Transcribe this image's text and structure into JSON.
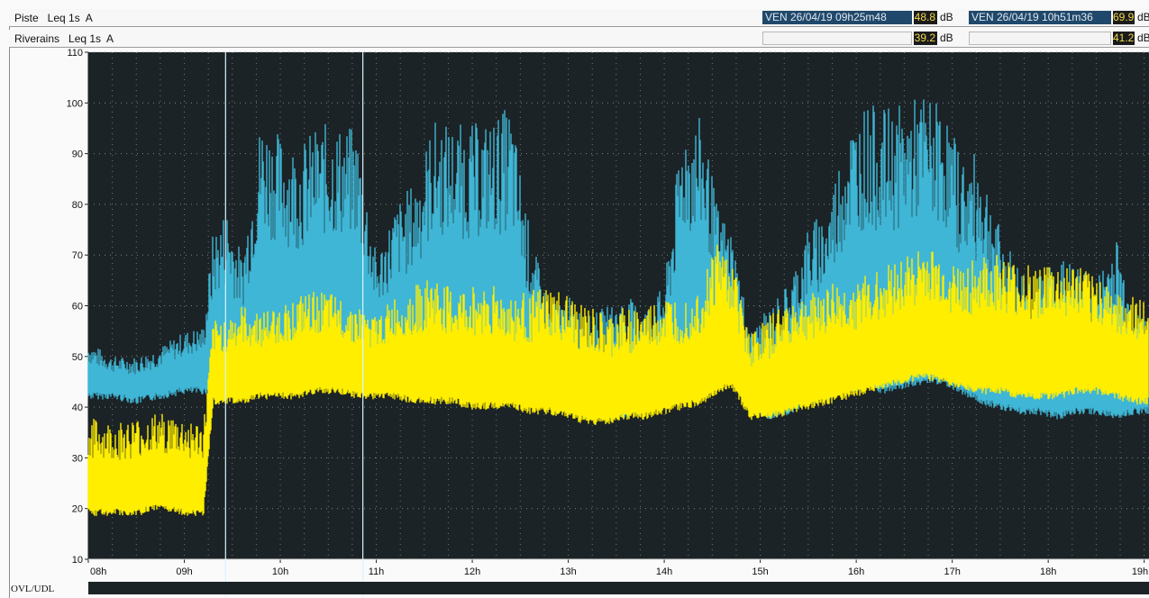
{
  "header": {
    "row1": {
      "label": "Piste   Leq 1s  A",
      "cursor1_datetime": "VEN 26/04/19 09h25m48",
      "cursor1_value": "48.8",
      "cursor1_unit": "dB",
      "cursor2_datetime": "VEN 26/04/19 10h51m36",
      "cursor2_value": "69.9",
      "cursor2_unit": "dB"
    },
    "row2": {
      "label": "Riverains   Leq 1s  A",
      "cursor1_value": "39.2",
      "cursor1_unit": "dB",
      "cursor2_value": "41.2",
      "cursor2_unit": "dB"
    }
  },
  "footer": {
    "ovl_label": "OVL/UDL"
  },
  "colors": {
    "piste": "#3fb6d6",
    "riverains": "#ffee00",
    "background": "#1c2326",
    "cursor": "#d8f4ff"
  },
  "chart_data": {
    "type": "line",
    "title": "",
    "xlabel": "",
    "ylabel": "",
    "x_ticks": [
      "08h",
      "09h",
      "10h",
      "11h",
      "12h",
      "13h",
      "14h",
      "15h",
      "16h",
      "17h",
      "18h",
      "19h"
    ],
    "y_ticks": [
      10,
      20,
      30,
      40,
      50,
      60,
      70,
      80,
      90,
      100,
      110
    ],
    "xlim_hours": [
      8,
      19.05
    ],
    "ylim": [
      10,
      110
    ],
    "grid": true,
    "cursors_hours": [
      9.43,
      10.86
    ],
    "series": [
      {
        "name": "Piste",
        "color": "#3fb6d6",
        "points": [
          [
            8.0,
            43,
            53
          ],
          [
            8.25,
            43,
            50
          ],
          [
            8.5,
            42,
            50
          ],
          [
            8.75,
            43,
            52
          ],
          [
            9.0,
            44,
            55
          ],
          [
            9.2,
            44,
            56
          ],
          [
            9.3,
            44,
            75
          ],
          [
            9.45,
            44,
            80
          ],
          [
            9.6,
            45,
            70
          ],
          [
            9.8,
            45,
            98
          ],
          [
            10.0,
            45,
            94
          ],
          [
            10.2,
            45,
            92
          ],
          [
            10.4,
            46,
            96
          ],
          [
            10.6,
            45,
            96
          ],
          [
            10.8,
            46,
            95
          ],
          [
            11.0,
            45,
            70
          ],
          [
            11.2,
            46,
            80
          ],
          [
            11.4,
            44,
            85
          ],
          [
            11.6,
            45,
            97
          ],
          [
            11.8,
            45,
            96
          ],
          [
            12.0,
            45,
            96
          ],
          [
            12.2,
            44,
            97
          ],
          [
            12.4,
            44,
            100
          ],
          [
            12.6,
            43,
            75
          ],
          [
            12.8,
            42,
            60
          ],
          [
            13.0,
            40,
            62
          ],
          [
            13.2,
            39,
            58
          ],
          [
            13.4,
            39,
            60
          ],
          [
            13.6,
            39,
            62
          ],
          [
            13.8,
            40,
            60
          ],
          [
            14.0,
            42,
            64
          ],
          [
            14.2,
            43,
            98
          ],
          [
            14.4,
            45,
            97
          ],
          [
            14.55,
            48,
            80
          ],
          [
            14.7,
            47,
            75
          ],
          [
            14.9,
            40,
            55
          ],
          [
            15.1,
            39,
            60
          ],
          [
            15.3,
            40,
            65
          ],
          [
            15.5,
            42,
            76
          ],
          [
            15.7,
            43,
            80
          ],
          [
            15.9,
            44,
            96
          ],
          [
            16.1,
            45,
            100
          ],
          [
            16.3,
            44,
            99
          ],
          [
            16.5,
            45,
            100
          ],
          [
            16.7,
            46,
            102
          ],
          [
            16.9,
            46,
            100
          ],
          [
            17.1,
            44,
            90
          ],
          [
            17.3,
            42,
            90
          ],
          [
            17.5,
            41,
            75
          ],
          [
            17.7,
            40,
            68
          ],
          [
            17.9,
            40,
            66
          ],
          [
            18.1,
            39,
            70
          ],
          [
            18.3,
            40,
            68
          ],
          [
            18.5,
            40,
            65
          ],
          [
            18.7,
            39,
            75
          ],
          [
            18.9,
            40,
            60
          ],
          [
            19.05,
            40,
            58
          ]
        ]
      },
      {
        "name": "Riverains",
        "color": "#ffee00",
        "points": [
          [
            8.0,
            20,
            38
          ],
          [
            8.25,
            20,
            37
          ],
          [
            8.5,
            20,
            38
          ],
          [
            8.75,
            21,
            39
          ],
          [
            9.0,
            20,
            38
          ],
          [
            9.2,
            20,
            37
          ],
          [
            9.3,
            42,
            57
          ],
          [
            9.45,
            42,
            58
          ],
          [
            9.6,
            42,
            60
          ],
          [
            9.8,
            43,
            59
          ],
          [
            10.0,
            43,
            60
          ],
          [
            10.2,
            43,
            62
          ],
          [
            10.4,
            44,
            63
          ],
          [
            10.6,
            44,
            62
          ],
          [
            10.8,
            43,
            60
          ],
          [
            11.0,
            43,
            58
          ],
          [
            11.2,
            43,
            62
          ],
          [
            11.4,
            42,
            64
          ],
          [
            11.6,
            42,
            66
          ],
          [
            11.8,
            42,
            63
          ],
          [
            12.0,
            41,
            64
          ],
          [
            12.2,
            41,
            65
          ],
          [
            12.4,
            41,
            62
          ],
          [
            12.6,
            40,
            63
          ],
          [
            12.8,
            40,
            64
          ],
          [
            13.0,
            39,
            62
          ],
          [
            13.2,
            38,
            60
          ],
          [
            13.4,
            38,
            58
          ],
          [
            13.6,
            39,
            60
          ],
          [
            13.8,
            39,
            60
          ],
          [
            14.0,
            40,
            62
          ],
          [
            14.2,
            41,
            62
          ],
          [
            14.4,
            42,
            65
          ],
          [
            14.55,
            44,
            74
          ],
          [
            14.7,
            45,
            70
          ],
          [
            14.9,
            39,
            55
          ],
          [
            15.1,
            39,
            58
          ],
          [
            15.3,
            40,
            62
          ],
          [
            15.5,
            41,
            62
          ],
          [
            15.7,
            42,
            65
          ],
          [
            15.9,
            43,
            64
          ],
          [
            16.1,
            44,
            66
          ],
          [
            16.3,
            45,
            68
          ],
          [
            16.5,
            46,
            70
          ],
          [
            16.7,
            47,
            72
          ],
          [
            16.9,
            46,
            70
          ],
          [
            17.1,
            45,
            68
          ],
          [
            17.3,
            44,
            70
          ],
          [
            17.5,
            44,
            70
          ],
          [
            17.7,
            43,
            68
          ],
          [
            17.9,
            43,
            69
          ],
          [
            18.1,
            43,
            68
          ],
          [
            18.3,
            44,
            68
          ],
          [
            18.5,
            44,
            66
          ],
          [
            18.7,
            43,
            64
          ],
          [
            18.9,
            42,
            62
          ],
          [
            19.05,
            42,
            60
          ]
        ]
      }
    ]
  }
}
